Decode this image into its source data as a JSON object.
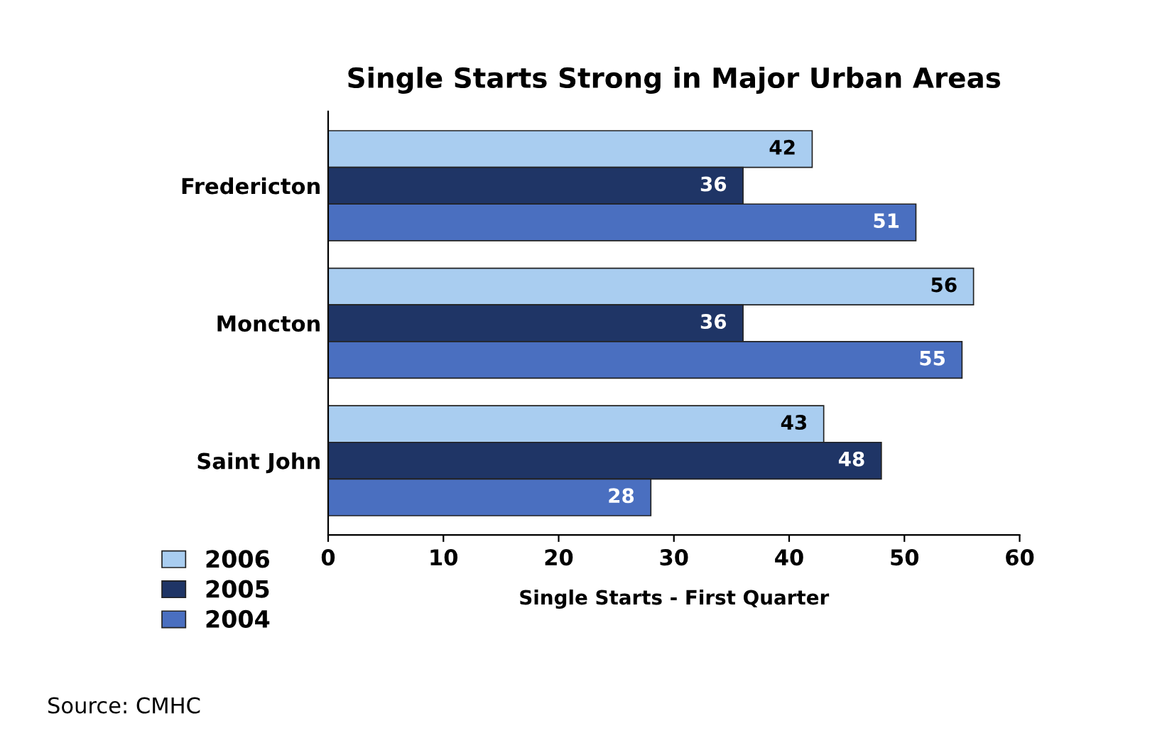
{
  "chart_data": {
    "type": "bar",
    "orientation": "horizontal",
    "title": "Single Starts Strong in Major Urban Areas",
    "xlabel": "Single Starts - First Quarter",
    "categories": [
      "Fredericton",
      "Moncton",
      "Saint John"
    ],
    "series": [
      {
        "name": "2006",
        "color": "#a9cdf0",
        "values": [
          42,
          56,
          43
        ]
      },
      {
        "name": "2005",
        "color": "#1f3566",
        "values": [
          36,
          36,
          48
        ]
      },
      {
        "name": "2004",
        "color": "#4a6fc0",
        "values": [
          51,
          55,
          28
        ]
      }
    ],
    "xlim": [
      0,
      60
    ],
    "xticks": [
      0,
      10,
      20,
      30,
      40,
      50,
      60
    ],
    "data_labels": true,
    "legend": "bottom left",
    "grid": false,
    "annotations": [
      "Source: CMHC"
    ]
  }
}
